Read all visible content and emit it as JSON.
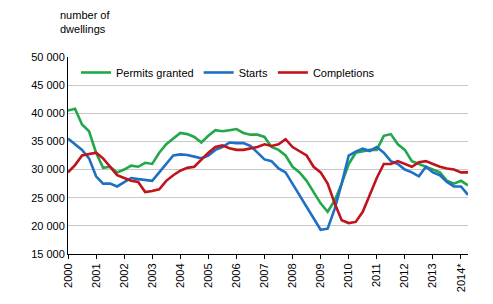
{
  "chart_data": {
    "type": "line",
    "ylabel": "number of\ndwellings",
    "categories": [
      "2000",
      null,
      null,
      null,
      "2001",
      null,
      null,
      null,
      "2002",
      null,
      null,
      null,
      "2003",
      null,
      null,
      null,
      "2004",
      null,
      null,
      null,
      "2005",
      null,
      null,
      null,
      "2006",
      null,
      null,
      null,
      "2007",
      null,
      null,
      null,
      "2008",
      null,
      null,
      null,
      "2009",
      null,
      null,
      null,
      "2010",
      null,
      null,
      null,
      "2011",
      null,
      null,
      null,
      "2012",
      null,
      null,
      null,
      "2013",
      null,
      null,
      null,
      "2014*",
      null
    ],
    "series": [
      {
        "name": "Permits granted",
        "color": "#22a84a",
        "values": [
          40500,
          40800,
          38000,
          36800,
          33000,
          30300,
          30500,
          29500,
          30000,
          30700,
          30500,
          31200,
          31000,
          33000,
          34500,
          35500,
          36500,
          36300,
          35800,
          34800,
          36000,
          37000,
          36800,
          37000,
          37200,
          36500,
          36200,
          36200,
          35800,
          34000,
          33500,
          32500,
          30500,
          29500,
          28000,
          26000,
          24000,
          22500,
          24500,
          27500,
          31000,
          33000,
          33200,
          33500,
          33500,
          36000,
          36300,
          34500,
          33500,
          31500,
          31000,
          30500,
          30000,
          29500,
          28000,
          27500,
          28000,
          27200
        ]
      },
      {
        "name": "Starts",
        "color": "#1f6fc4",
        "values": [
          35500,
          34500,
          33500,
          32000,
          28800,
          27500,
          27500,
          27000,
          27800,
          28500,
          28300,
          28200,
          28000,
          29500,
          31000,
          32500,
          32700,
          32600,
          32300,
          32000,
          32500,
          33500,
          34000,
          34800,
          34700,
          34700,
          34200,
          33000,
          31800,
          31500,
          30200,
          29500,
          27500,
          25500,
          23500,
          21500,
          19300,
          19500,
          23000,
          27500,
          32500,
          33200,
          33700,
          33300,
          34000,
          33000,
          31500,
          31000,
          30000,
          29500,
          28800,
          30500,
          29500,
          29000,
          27800,
          27000,
          27000,
          25500
        ]
      },
      {
        "name": "Completions",
        "color": "#c0141c",
        "values": [
          29500,
          30800,
          32500,
          32700,
          33000,
          32000,
          30500,
          29000,
          28500,
          28000,
          27800,
          26000,
          26200,
          26500,
          28000,
          29000,
          29800,
          30300,
          30500,
          31800,
          33000,
          34000,
          34300,
          33800,
          33500,
          33500,
          33800,
          34000,
          34500,
          34200,
          34500,
          35400,
          34000,
          33200,
          32500,
          30500,
          29500,
          27500,
          24000,
          21000,
          20500,
          20700,
          22500,
          25500,
          28500,
          31000,
          31000,
          31500,
          31000,
          30500,
          31300,
          31500,
          31000,
          30500,
          30200,
          30000,
          29500,
          29500
        ]
      }
    ],
    "ylim": [
      15000,
      50000
    ],
    "yticks": [
      {
        "value": 15000,
        "label": "15 000"
      },
      {
        "value": 20000,
        "label": "20 000"
      },
      {
        "value": 25000,
        "label": "25 000"
      },
      {
        "value": 30000,
        "label": "30 000"
      },
      {
        "value": 35000,
        "label": "35 000"
      },
      {
        "value": 40000,
        "label": "40 000"
      },
      {
        "value": 45000,
        "label": "45 000"
      },
      {
        "value": 50000,
        "label": "50 000"
      }
    ],
    "grid": true,
    "legend": "top-left"
  }
}
